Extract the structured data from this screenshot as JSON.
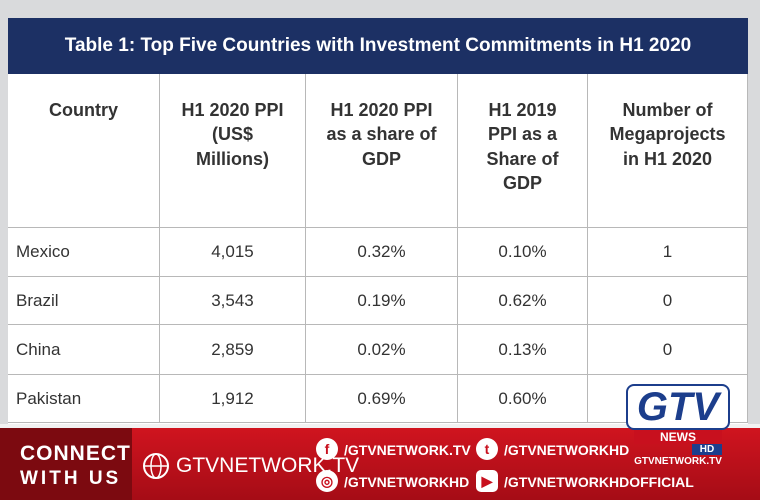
{
  "table": {
    "title": "Table 1: Top Five Countries with Investment Commitments in H1 2020",
    "headers": [
      "Country",
      "H1 2020 PPI (US$ Millions)",
      "H1 2020 PPI as a share of GDP",
      "H1 2019 PPI as a Share of GDP",
      "Number of Megaprojects in H1 2020"
    ],
    "rows": [
      [
        "Mexico",
        "4,015",
        "0.32%",
        "0.10%",
        "1"
      ],
      [
        "Brazil",
        "3,543",
        "0.19%",
        "0.62%",
        "0"
      ],
      [
        "China",
        "2,859",
        "0.02%",
        "0.13%",
        "0"
      ],
      [
        "Pakistan",
        "1,912",
        "0.69%",
        "0.60%",
        ""
      ]
    ]
  },
  "banner": {
    "connect": "CONNECT",
    "with_us": "WITH US",
    "website": "GTVNETWORK.TV",
    "facebook": "/GTVNETWORK.TV",
    "twitter": "/GTVNETWORKHD",
    "instagram": "/GTVNETWORKHD",
    "youtube": "/GTVNETWORKHDOFFICIAL"
  },
  "logo": {
    "name": "GTV",
    "news": "NEWS",
    "hd": "HD",
    "site": "GTVNETWORK.TV"
  }
}
